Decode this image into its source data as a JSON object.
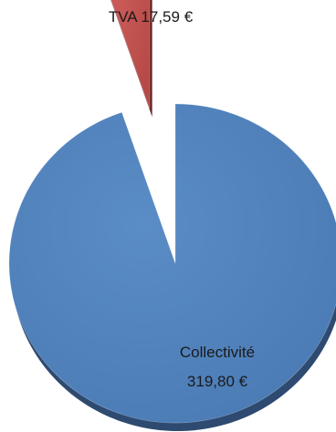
{
  "chart_data": {
    "type": "pie",
    "style": "exploded 3d pie",
    "slices": [
      {
        "name": "Collectivité",
        "value": 319.8,
        "label_line1": "Collectivité",
        "label_line2": "319,80 €",
        "color": "#4F81BD",
        "shade": "#2E4A70"
      },
      {
        "name": "TVA",
        "value": 17.59,
        "label_line1": "TVA 17,59 €",
        "color": "#C0504D",
        "shade": "#6E2523"
      }
    ]
  }
}
